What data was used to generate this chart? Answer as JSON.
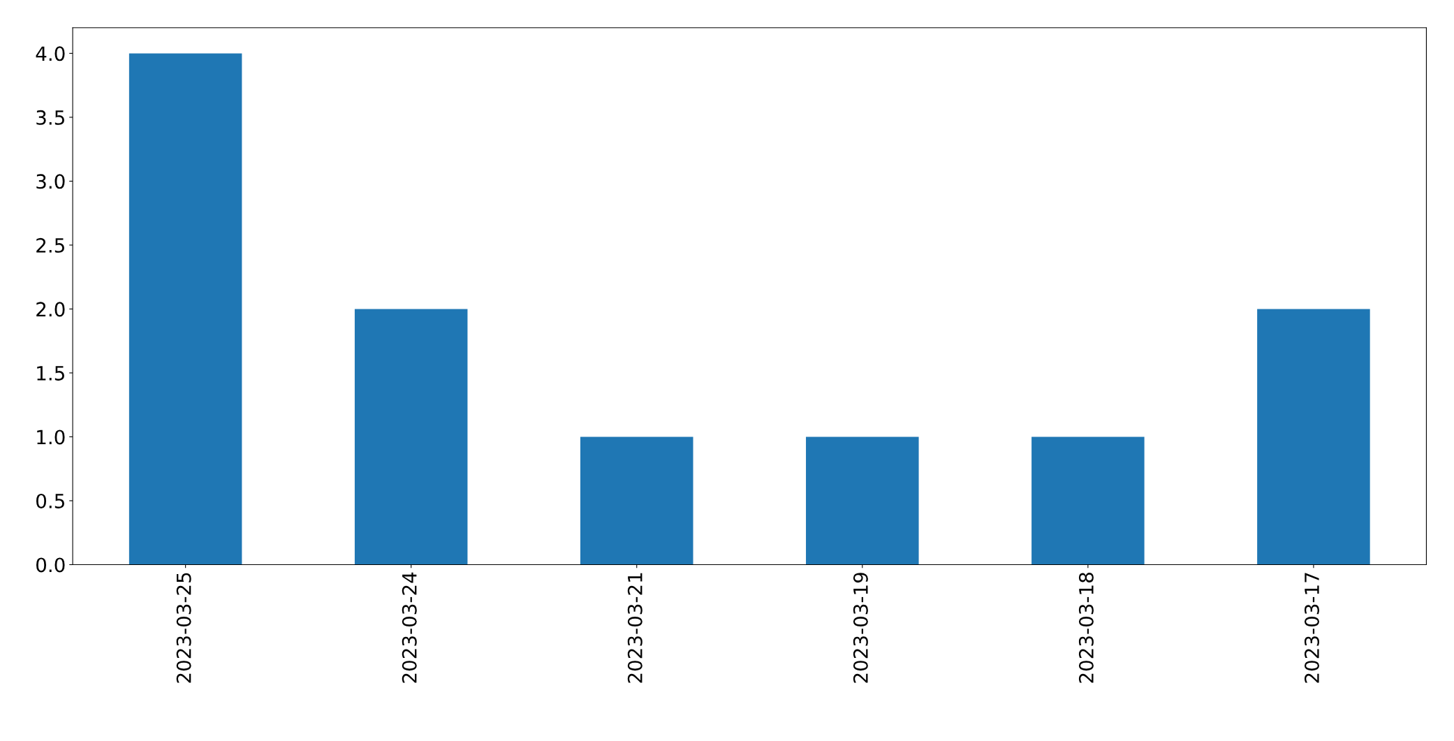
{
  "chart_data": {
    "type": "bar",
    "categories": [
      "2023-03-25",
      "2023-03-24",
      "2023-03-21",
      "2023-03-19",
      "2023-03-18",
      "2023-03-17"
    ],
    "values": [
      4,
      2,
      1,
      1,
      1,
      2
    ],
    "color": "#1f77b4",
    "ylim": [
      0,
      4.2
    ],
    "yticks": [
      {
        "value": 0,
        "label": "0.0"
      },
      {
        "value": 0.5,
        "label": "0.5"
      },
      {
        "value": 1,
        "label": "1.0"
      },
      {
        "value": 1.5,
        "label": "1.5"
      },
      {
        "value": 2,
        "label": "2.0"
      },
      {
        "value": 2.5,
        "label": "2.5"
      },
      {
        "value": 3,
        "label": "3.0"
      },
      {
        "value": 3.5,
        "label": "3.5"
      },
      {
        "value": 4,
        "label": "4.0"
      }
    ],
    "grid": false,
    "legend": false
  }
}
